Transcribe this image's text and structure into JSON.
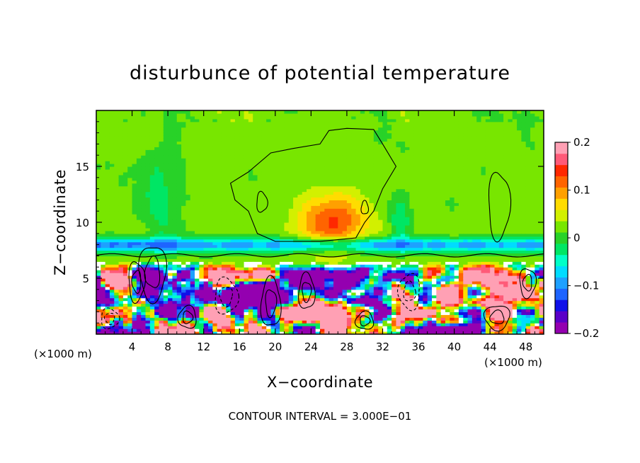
{
  "chart_data": {
    "type": "heatmap",
    "title": "disturbunce of potential temperature",
    "xlabel": "X−coordinate",
    "ylabel": "Z−coordinate",
    "x_unit": "(×1000 m)",
    "y_unit": "(×1000 m)",
    "xlim": [
      0,
      50
    ],
    "ylim": [
      0,
      20
    ],
    "x_ticks": [
      4,
      8,
      12,
      16,
      20,
      24,
      28,
      32,
      36,
      40,
      44,
      48
    ],
    "x_tick_labels": [
      "4",
      "8",
      "12",
      "16",
      "20",
      "24",
      "28",
      "32",
      "36",
      "40",
      "44",
      "48"
    ],
    "y_ticks": [
      5,
      10,
      15
    ],
    "y_tick_labels": [
      "5",
      "10",
      "15"
    ],
    "colorbar": {
      "range": [
        -0.2,
        0.2
      ],
      "labels": [
        "0.2",
        "0.1",
        "0",
        "−0.1",
        "−0.2"
      ],
      "label_values": [
        0.2,
        0.1,
        0,
        -0.1,
        -0.2
      ],
      "colors": [
        "#9400b0",
        "#5a00c8",
        "#1010e8",
        "#1e64ff",
        "#1ea0ff",
        "#00dcff",
        "#00ffc8",
        "#00e664",
        "#28d228",
        "#78e600",
        "#d2f000",
        "#ffdc00",
        "#ffa000",
        "#ff6400",
        "#ff2800",
        "#ff5a78",
        "#ffa0b4"
      ]
    },
    "features": [
      {
        "name": "upper warm anomaly",
        "x": 26.5,
        "z": 10.0,
        "value": 0.12
      },
      {
        "name": "stable layer",
        "z": 8.0,
        "value": -0.12
      },
      {
        "name": "convective layer",
        "z_range": [
          0,
          6.5
        ]
      }
    ],
    "footer": "CONTOUR INTERVAL = 3.000E−01"
  }
}
